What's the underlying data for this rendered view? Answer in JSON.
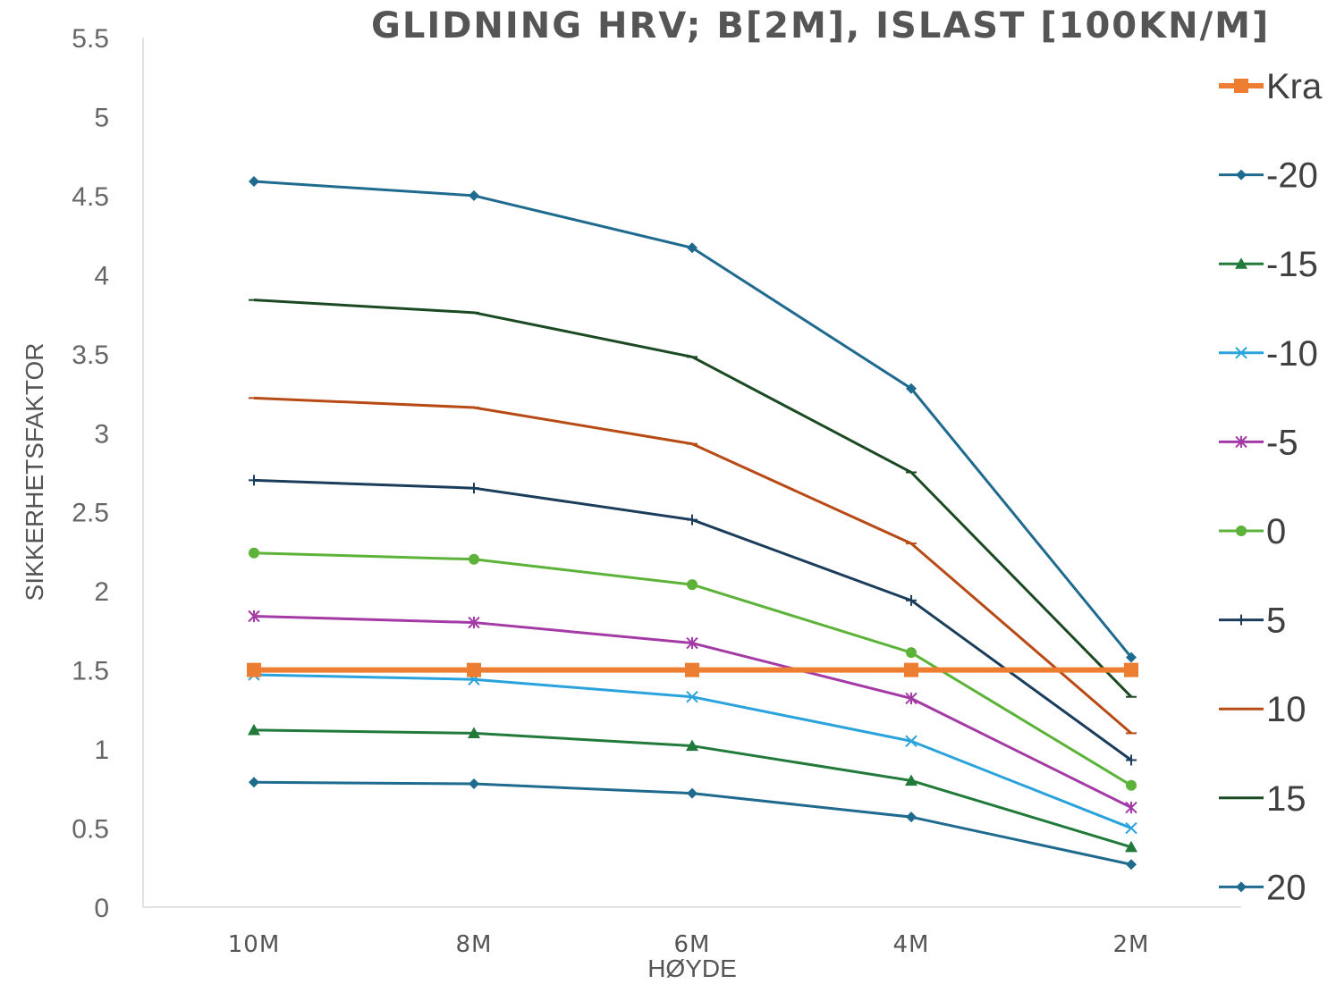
{
  "chart_data": {
    "type": "line",
    "title": "GLIDNING HRV; B[2M], ISLAST [100KN/M]",
    "xlabel": "HØYDE",
    "ylabel": "SIKKERHETSFAKTOR",
    "categories": [
      "10M",
      "8M",
      "6M",
      "4M",
      "2M"
    ],
    "ylim": [
      0,
      5.5
    ],
    "yticks": [
      "0",
      "0.5",
      "1",
      "1.5",
      "2",
      "2.5",
      "3",
      "3.5",
      "4",
      "4.5",
      "5",
      "5.5"
    ],
    "grid": false,
    "legend": "right",
    "series": [
      {
        "name": "Kra",
        "color": "#ED7D31",
        "marker": "square",
        "values": [
          1.5,
          1.5,
          1.5,
          1.5,
          1.5
        ]
      },
      {
        "name": "-20",
        "color": "#1F6A8F",
        "marker": "diamond",
        "values": [
          4.59,
          4.5,
          4.17,
          3.28,
          1.58
        ]
      },
      {
        "name": "-15",
        "color": "#217A3A",
        "marker": "triangle",
        "values": [
          1.12,
          1.1,
          1.02,
          0.8,
          0.38
        ]
      },
      {
        "name": "-10",
        "color": "#2AA3DD",
        "marker": "x",
        "values": [
          1.47,
          1.44,
          1.33,
          1.05,
          0.5
        ]
      },
      {
        "name": "-5",
        "color": "#A33AA6",
        "marker": "star",
        "values": [
          1.84,
          1.8,
          1.67,
          1.32,
          0.63
        ]
      },
      {
        "name": "0",
        "color": "#5DB33A",
        "marker": "circle",
        "values": [
          2.24,
          2.2,
          2.04,
          1.61,
          0.77
        ]
      },
      {
        "name": "5",
        "color": "#1B3D5C",
        "marker": "plus",
        "values": [
          2.7,
          2.65,
          2.45,
          1.94,
          0.93
        ]
      },
      {
        "name": "10",
        "color": "#B84A16",
        "marker": "dash",
        "values": [
          3.22,
          3.16,
          2.93,
          2.3,
          1.1
        ]
      },
      {
        "name": "15",
        "color": "#1B4A22",
        "marker": "dash",
        "values": [
          3.84,
          3.76,
          3.48,
          2.75,
          1.33
        ]
      },
      {
        "name": "20",
        "color": "#1F6A8F",
        "marker": "diamond",
        "values": [
          0.79,
          0.78,
          0.72,
          0.57,
          0.27
        ]
      }
    ]
  }
}
